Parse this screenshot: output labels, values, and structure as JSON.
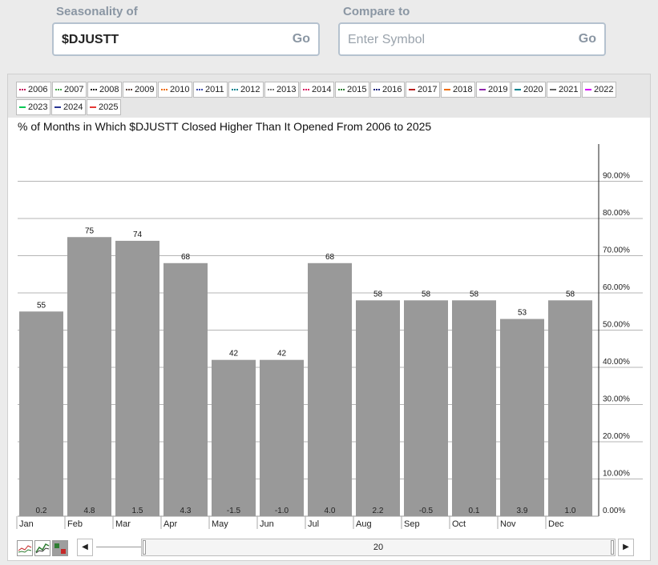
{
  "search": {
    "seasonality_label": "Seasonality of",
    "seasonality_value": "$DJUSTT",
    "compare_label": "Compare to",
    "compare_placeholder": "Enter Symbol",
    "go_label": "Go"
  },
  "legend": [
    {
      "year": "2006",
      "color": "#c2185b",
      "style": "dotted"
    },
    {
      "year": "2007",
      "color": "#43a047",
      "style": "dotted"
    },
    {
      "year": "2008",
      "color": "#222222",
      "style": "dotted"
    },
    {
      "year": "2009",
      "color": "#5d4037",
      "style": "dotted"
    },
    {
      "year": "2010",
      "color": "#ef6c00",
      "style": "dotted"
    },
    {
      "year": "2011",
      "color": "#3949ab",
      "style": "dotted"
    },
    {
      "year": "2012",
      "color": "#00838f",
      "style": "dotted"
    },
    {
      "year": "2013",
      "color": "#757575",
      "style": "dotted"
    },
    {
      "year": "2014",
      "color": "#d81b60",
      "style": "dotted"
    },
    {
      "year": "2015",
      "color": "#2e7d32",
      "style": "dotted"
    },
    {
      "year": "2016",
      "color": "#1a237e",
      "style": "dotted"
    },
    {
      "year": "2017",
      "color": "#b71c1c",
      "style": "solid"
    },
    {
      "year": "2018",
      "color": "#ef6c00",
      "style": "solid"
    },
    {
      "year": "2019",
      "color": "#8e24aa",
      "style": "solid"
    },
    {
      "year": "2020",
      "color": "#00838f",
      "style": "solid"
    },
    {
      "year": "2021",
      "color": "#616161",
      "style": "solid"
    },
    {
      "year": "2022",
      "color": "#d500f9",
      "style": "solid"
    },
    {
      "year": "2023",
      "color": "#00c853",
      "style": "solid"
    },
    {
      "year": "2024",
      "color": "#283593",
      "style": "solid"
    },
    {
      "year": "2025",
      "color": "#e53935",
      "style": "solid"
    }
  ],
  "chart_data": {
    "type": "bar",
    "title": "% of Months in Which $DJUSTT Closed Higher Than It Opened From 2006 to 2025",
    "categories": [
      "Jan",
      "Feb",
      "Mar",
      "Apr",
      "May",
      "Jun",
      "Jul",
      "Aug",
      "Sep",
      "Oct",
      "Nov",
      "Dec"
    ],
    "values": [
      55,
      75,
      74,
      68,
      42,
      42,
      68,
      58,
      58,
      58,
      53,
      58
    ],
    "avg_change_labels": [
      "0.2",
      "4.8",
      "1.5",
      "4.3",
      "-1.5",
      "-1.0",
      "4.0",
      "2.2",
      "-0.5",
      "0.1",
      "3.9",
      "1.0"
    ],
    "yticks": [
      "0.00%",
      "10.00%",
      "20.00%",
      "30.00%",
      "40.00%",
      "50.00%",
      "60.00%",
      "70.00%",
      "80.00%",
      "90.00%"
    ],
    "ylim": [
      0,
      100
    ],
    "bar_color": "#999999",
    "grid": true
  },
  "controls": {
    "range_value": "20",
    "left_arrow": "◀",
    "right_arrow": "▶"
  }
}
